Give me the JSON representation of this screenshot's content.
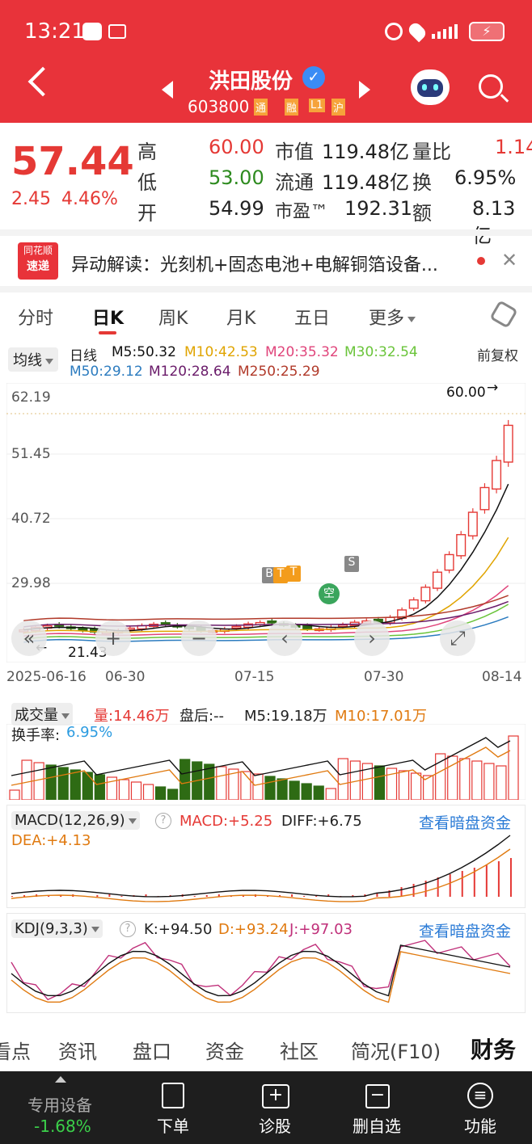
{
  "status": {
    "time": "13:21",
    "battery": "⚡"
  },
  "stock": {
    "name": "洪田股份",
    "code": "603800",
    "tag1": "通",
    "tag2": "融",
    "tag3": "L1",
    "tag4": "沪"
  },
  "quote": {
    "price": "57.44",
    "change": "2.45",
    "pct": "4.46%",
    "high_label": "高",
    "high": "60.00",
    "low_label": "低",
    "low": "53.00",
    "open_label": "开",
    "open": "54.99",
    "mcap_label": "市值",
    "mcap": "119.48亿",
    "float_label": "流通",
    "float": "119.48亿",
    "pe_label": "市盈™",
    "pe": "192.31",
    "vr_label": "量比",
    "vr": "1.14",
    "turn_label": "换",
    "turn": "6.95%",
    "amt_label": "额",
    "amt": "8.13亿"
  },
  "news": {
    "logo_top": "同花顺",
    "logo_bottom": "速递",
    "text": "异动解读：光刻机+固态电池+电解铜箔设备..."
  },
  "tabs": [
    "分时",
    "日K",
    "周K",
    "月K",
    "五日",
    "更多"
  ],
  "ma": {
    "selector": "均线",
    "period": "日线",
    "m5": "M5:50.32",
    "m10": "M10:42.53",
    "m20": "M20:35.32",
    "m30": "M30:32.54",
    "m50": "M50:29.12",
    "m120": "M120:28.64",
    "m250": "M250:25.29",
    "adjust": "前复权"
  },
  "colors": {
    "m5": "#111111",
    "m10": "#e0a400",
    "m20": "#e0457b",
    "m30": "#6ac43a",
    "m50": "#2b7bbf",
    "m120": "#6a1b6a",
    "m250": "#b13a2a",
    "up": "#e53935",
    "down": "#2e6b14"
  },
  "kline": {
    "y_ticks": [
      "62.19",
      "51.45",
      "40.72",
      "29.98"
    ],
    "max_label": "60.00",
    "min_label": "21.43",
    "dates": [
      "2025-06-16",
      "06-30",
      "07-15",
      "07-30",
      "08-14"
    ],
    "markers": [
      "B",
      "T",
      "T",
      "S",
      "空"
    ]
  },
  "volume": {
    "title": "成交量",
    "vol": "量:14.46万",
    "after": "盘后:--",
    "m5": "M5:19.18万",
    "m10": "M10:17.01万",
    "turnover_label": "换手率:",
    "turnover": "6.95%"
  },
  "macd": {
    "title": "MACD(12,26,9)",
    "macd": "MACD:+5.25",
    "diff": "DIFF:+6.75",
    "dea": "DEA:+4.13",
    "link": "查看暗盘资金"
  },
  "kdj": {
    "title": "KDJ(9,3,3)",
    "k": "K:+94.50",
    "d": "D:+93.24",
    "j": "J:+97.03",
    "link": "查看暗盘资金"
  },
  "bottom_tabs": [
    "看点",
    "资讯",
    "盘口",
    "资金",
    "社区",
    "简况(F10)",
    "财务"
  ],
  "nav": {
    "device": "专用设备",
    "device_pct": "-1.68%",
    "order": "下单",
    "diag": "诊股",
    "del": "删自选",
    "func": "功能"
  }
}
